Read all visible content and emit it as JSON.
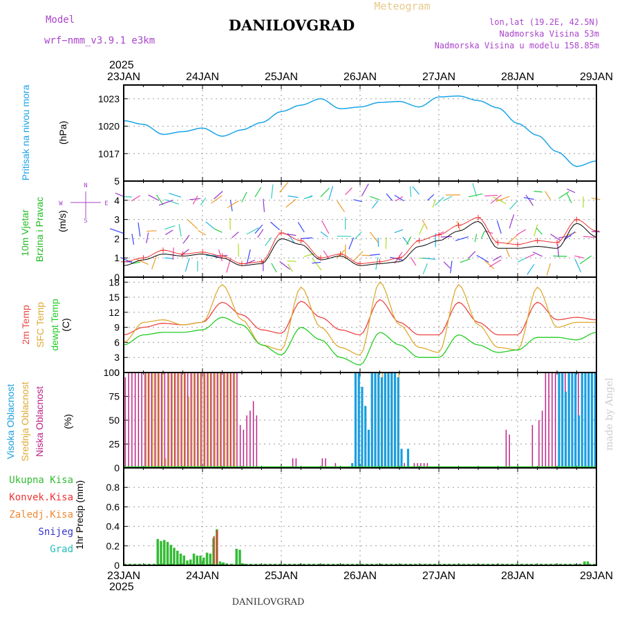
{
  "header": {
    "model_label": "Model",
    "model_name": "wrf−nmm_v3.9.1  e3km",
    "title": "DANILOVGRAD",
    "subtitle": "Meteogram",
    "lonlat": "lon,lat (19.2E, 42.5N)",
    "elevation": "Nadmorska Visina 53m",
    "model_elevation": "Nadmorska Visina u modelu 158.85m",
    "year": "2025",
    "footer_title": "DANILOVGRAD",
    "credit": "made by Angel"
  },
  "colors": {
    "pressure": "#1aa3e8",
    "wind_label": "#22bb22",
    "temp2m": "#ee4444",
    "sfc": "#ddaa33",
    "dewpt": "#22cc22",
    "high_cloud": "#1a9ee0",
    "mid_cloud": "#ddaa33",
    "low_cloud": "#bb2288",
    "total_precip": "#33bb33",
    "conv_precip": "#ee3333",
    "frozen": "#ee8833",
    "snow": "#3333cc",
    "hail": "#22bbbb",
    "purple": "#aa44cc"
  },
  "chart_data": [
    {
      "type": "line",
      "id": "pressure",
      "ylabel": "Pritisak na nivou mora",
      "unit": "(hPa)",
      "ylim": [
        1014,
        1024.5
      ],
      "yticks": [
        1017,
        1020,
        1023
      ],
      "x": [
        0,
        6,
        12,
        18,
        24,
        30,
        36,
        42,
        48,
        54,
        60,
        66,
        72,
        78,
        84,
        90,
        96,
        102,
        108,
        114,
        120,
        126,
        132,
        138,
        144
      ],
      "values": [
        1020.6,
        1020.2,
        1019.1,
        1019.4,
        1019.8,
        1018.9,
        1019.6,
        1020.4,
        1021.6,
        1022.3,
        1023.0,
        1021.9,
        1022.1,
        1022.6,
        1022.7,
        1022.1,
        1023.2,
        1023.3,
        1022.8,
        1022.0,
        1020.3,
        1019.0,
        1017.2,
        1015.6,
        1016.2
      ]
    },
    {
      "type": "line",
      "id": "wind",
      "ylabel_1": "10m Vjetar",
      "ylabel_2": "Brzina i Pravac",
      "unit": "(m/s)",
      "compass": {
        "n": "N",
        "s": "S",
        "e": "E",
        "w": "W"
      },
      "ylim": [
        0,
        5
      ],
      "yticks": [
        0,
        1,
        2,
        3,
        4,
        5
      ],
      "x": [
        0,
        6,
        12,
        18,
        24,
        30,
        36,
        42,
        48,
        54,
        60,
        66,
        72,
        78,
        84,
        90,
        96,
        102,
        108,
        114,
        120,
        126,
        132,
        138,
        144
      ],
      "values": [
        0.6,
        0.9,
        1.2,
        1.1,
        1.2,
        1.0,
        0.6,
        0.7,
        2.0,
        1.7,
        0.9,
        1.1,
        0.6,
        0.7,
        0.8,
        1.6,
        1.9,
        2.4,
        2.9,
        1.5,
        1.5,
        1.6,
        1.5,
        2.8,
        2.1
      ],
      "gusts": [
        0.8,
        1.0,
        1.4,
        1.2,
        1.3,
        1.1,
        0.7,
        0.8,
        2.3,
        1.9,
        1.0,
        1.2,
        0.7,
        0.8,
        1.0,
        1.9,
        2.2,
        2.7,
        3.1,
        1.8,
        1.7,
        1.9,
        1.8,
        3.0,
        2.4
      ]
    },
    {
      "type": "line",
      "id": "temperature",
      "ylabel_1": "2m Temp",
      "ylabel_2": "SFC Temp",
      "ylabel_3": "dewpt Temp",
      "unit": "(C)",
      "ylim": [
        0,
        19
      ],
      "yticks": [
        0,
        3,
        6,
        9,
        12,
        15,
        18
      ],
      "x": [
        0,
        6,
        12,
        18,
        24,
        30,
        36,
        42,
        48,
        54,
        60,
        66,
        72,
        78,
        84,
        90,
        96,
        102,
        108,
        114,
        120,
        126,
        132,
        138,
        144
      ],
      "series": [
        {
          "name": "2m Temp",
          "values": [
            7.5,
            9.0,
            9.8,
            9.5,
            10.0,
            14.0,
            11.5,
            8.5,
            7.8,
            14.2,
            11.0,
            8.5,
            7.5,
            14.5,
            10.0,
            7.5,
            7.5,
            14.0,
            10.0,
            7.5,
            7.5,
            14.0,
            10.5,
            11.0,
            10.5
          ]
        },
        {
          "name": "SFC Temp",
          "values": [
            6.0,
            10.0,
            10.5,
            9.5,
            10.0,
            17.5,
            10.5,
            5.5,
            4.5,
            17.0,
            9.0,
            5.0,
            3.5,
            18.0,
            9.5,
            5.0,
            4.0,
            17.5,
            9.5,
            5.0,
            4.5,
            17.0,
            9.0,
            10.0,
            10.0
          ]
        },
        {
          "name": "dewpt Temp",
          "values": [
            5.5,
            7.5,
            8.0,
            8.0,
            8.5,
            11.0,
            9.5,
            5.5,
            3.5,
            9.0,
            6.5,
            3.0,
            1.5,
            8.0,
            5.5,
            3.0,
            3.0,
            7.5,
            5.5,
            4.0,
            4.5,
            7.0,
            7.0,
            6.5,
            8.0
          ]
        }
      ]
    },
    {
      "type": "bar",
      "id": "clouds",
      "ylabel_1": "Visoka Oblacnost",
      "ylabel_2": "Srednja Oblacnost",
      "ylabel_3": "Niska Oblacnost",
      "unit": "(%)",
      "ylim": [
        0,
        100
      ],
      "yticks": [
        0,
        25,
        50,
        75,
        100
      ],
      "high": {
        "x": [
          69,
          70,
          71,
          72,
          73,
          74,
          75,
          76,
          77,
          78,
          79,
          80,
          81,
          82,
          83,
          84,
          86,
          132,
          133,
          134,
          135,
          136,
          137,
          138,
          139,
          140,
          141,
          142,
          143
        ],
        "values": [
          5,
          100,
          100,
          85,
          65,
          40,
          100,
          100,
          100,
          95,
          100,
          100,
          100,
          100,
          95,
          20,
          20,
          100,
          100,
          80,
          100,
          100,
          100,
          55,
          100,
          100,
          100,
          100,
          100
        ]
      },
      "mid": {
        "x": [
          6,
          7,
          8,
          9,
          10,
          11,
          12,
          13,
          14,
          15,
          16,
          17,
          18,
          19,
          20,
          21,
          22,
          23,
          24,
          25,
          26,
          27,
          28,
          29,
          30,
          31,
          32,
          33,
          75,
          76,
          77,
          78,
          79,
          80,
          81,
          82,
          83
        ],
        "values": [
          100,
          100,
          100,
          100,
          100,
          100,
          10,
          100,
          100,
          100,
          100,
          100,
          100,
          75,
          100,
          100,
          100,
          100,
          100,
          100,
          100,
          100,
          100,
          100,
          100,
          100,
          100,
          100,
          100,
          100,
          100,
          100,
          100,
          100,
          100,
          100,
          100
        ]
      },
      "low": {
        "x": [
          0,
          1,
          2,
          3,
          4,
          5,
          6,
          7,
          8,
          9,
          10,
          11,
          12,
          13,
          14,
          15,
          16,
          17,
          18,
          19,
          20,
          21,
          22,
          23,
          24,
          25,
          26,
          27,
          28,
          29,
          30,
          31,
          32,
          33,
          34,
          35,
          36,
          37,
          38,
          39,
          40,
          51,
          52,
          60,
          61,
          64,
          70,
          78,
          85,
          88,
          89,
          90,
          91,
          92,
          116,
          117,
          124,
          126,
          127,
          128,
          129,
          130,
          131,
          132,
          133,
          134,
          135,
          136,
          137,
          138
        ],
        "values": [
          95,
          100,
          100,
          100,
          100,
          100,
          100,
          100,
          100,
          100,
          100,
          100,
          100,
          100,
          100,
          100,
          100,
          100,
          100,
          100,
          100,
          100,
          100,
          100,
          100,
          100,
          100,
          100,
          100,
          100,
          100,
          100,
          100,
          100,
          100,
          45,
          40,
          55,
          60,
          70,
          55,
          10,
          10,
          10,
          10,
          5,
          5,
          5,
          5,
          5,
          5,
          5,
          5,
          5,
          40,
          35,
          45,
          50,
          60,
          100,
          100,
          100,
          100,
          100,
          100,
          100,
          100,
          100,
          100,
          100
        ]
      }
    },
    {
      "type": "bar",
      "id": "precip",
      "ylabel": "1hr Precip (mm)",
      "legend": [
        "Ukupna Kisa",
        "Konvek.Kisa",
        "Zaledj.Kisa",
        "Snijeg",
        "Grad"
      ],
      "ylim": [
        0,
        1.0
      ],
      "yticks": [
        0,
        0.2,
        0.4,
        0.6,
        0.8
      ],
      "tick_labels": [
        "0",
        "0.2",
        "0.4",
        "0.6",
        "0.8"
      ],
      "total": {
        "x": [
          10,
          11,
          12,
          13,
          14,
          15,
          16,
          17,
          18,
          19,
          20,
          21,
          22,
          23,
          24,
          25,
          26,
          27,
          28,
          29,
          30,
          31,
          34,
          35,
          36,
          140,
          141
        ],
        "values": [
          0.27,
          0.25,
          0.26,
          0.24,
          0.21,
          0.18,
          0.15,
          0.12,
          0.1,
          0.05,
          0.06,
          0.12,
          0.1,
          0.1,
          0.08,
          0.13,
          0.12,
          0.28,
          0.37,
          0.04,
          0.03,
          0.02,
          0.17,
          0.16,
          0.02,
          0.04,
          0.04
        ]
      },
      "convective": {
        "x": [
          27,
          28
        ],
        "values": [
          0.3,
          0.36
        ]
      }
    }
  ],
  "time_axis": {
    "labels": [
      "23JAN",
      "24JAN",
      "25JAN",
      "26JAN",
      "27JAN",
      "28JAN",
      "29JAN"
    ]
  }
}
